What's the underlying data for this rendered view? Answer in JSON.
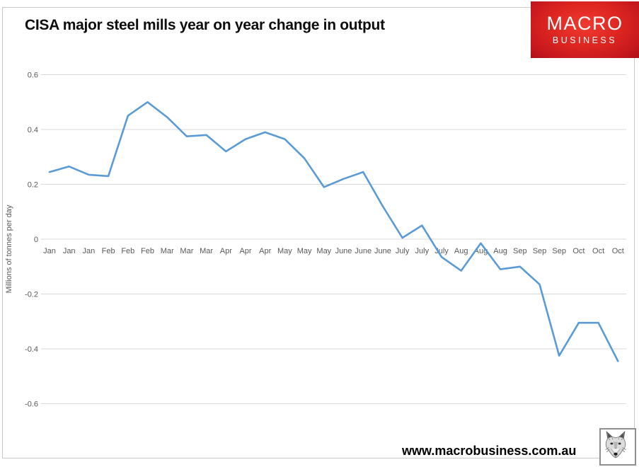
{
  "logo": {
    "line1": "MACRO",
    "line2": "BUSINESS"
  },
  "footer": {
    "url": "www.macrobusiness.com.au"
  },
  "colors": {
    "line": "#5B9BD5",
    "gridline": "#D9D9D9",
    "axis_text": "#595959",
    "logo_red": "#D31F26",
    "title_text": "#0D0D0D"
  },
  "chart_data": {
    "type": "line",
    "title": "CISA major steel mills year on year change in output",
    "ylabel": "Millions of tonnes per day",
    "xlabel": "",
    "ylim": [
      -0.6,
      0.6
    ],
    "yticks": [
      0.6,
      0.4,
      0.2,
      0,
      -0.2,
      -0.4,
      -0.6
    ],
    "grid": "horizontal",
    "legend": "none",
    "categories": [
      "Jan",
      "Jan",
      "Jan",
      "Feb",
      "Feb",
      "Feb",
      "Mar",
      "Mar",
      "Mar",
      "Apr",
      "Apr",
      "Apr",
      "May",
      "May",
      "May",
      "June",
      "June",
      "June",
      "July",
      "July",
      "July",
      "Aug",
      "Aug",
      "Aug",
      "Sep",
      "Sep",
      "Sep",
      "Oct",
      "Oct",
      "Oct"
    ],
    "values": [
      0.245,
      0.265,
      0.235,
      0.23,
      0.45,
      0.5,
      0.445,
      0.375,
      0.38,
      0.32,
      0.365,
      0.39,
      0.365,
      0.295,
      0.19,
      0.22,
      0.245,
      0.12,
      0.005,
      0.05,
      -0.065,
      -0.115,
      -0.015,
      -0.11,
      -0.1,
      -0.165,
      -0.425,
      -0.305,
      -0.305,
      -0.445
    ]
  }
}
